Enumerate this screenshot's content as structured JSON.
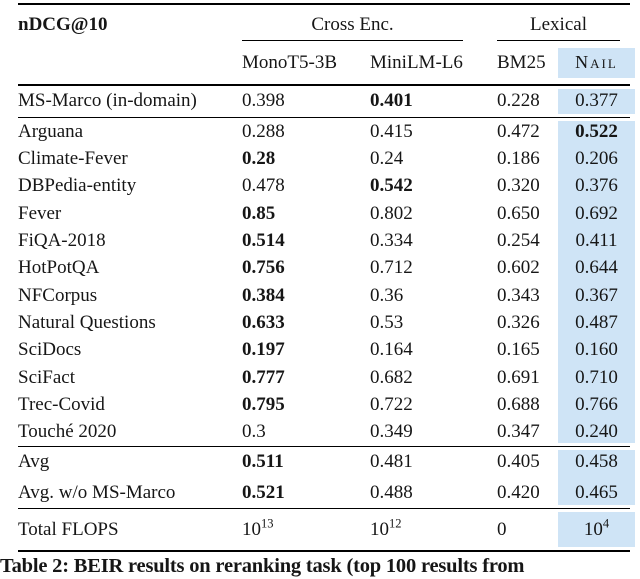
{
  "colors": {
    "highlight": "#cfe4f6",
    "text": "#161616",
    "rule": "#000000"
  },
  "table": {
    "metric_label": "nDCG@10",
    "group_headers": [
      {
        "label": "Cross Enc."
      },
      {
        "label": "Lexical"
      }
    ],
    "columns": [
      {
        "label": "MonoT5-3B"
      },
      {
        "label": "MiniLM-L6"
      },
      {
        "label": "BM25"
      },
      {
        "label": "Nail",
        "smallcaps": true,
        "highlighted": true
      }
    ],
    "sections": [
      {
        "name": "in-domain",
        "rows": [
          {
            "label": "MS-Marco (in-domain)",
            "values": [
              "0.398",
              "0.401",
              "0.228",
              "0.377"
            ],
            "bold_col": 1
          }
        ]
      },
      {
        "name": "beir-datasets",
        "rows": [
          {
            "label": "Arguana",
            "values": [
              "0.288",
              "0.415",
              "0.472",
              "0.522"
            ],
            "bold_col": 3
          },
          {
            "label": "Climate-Fever",
            "values": [
              "0.28",
              "0.24",
              "0.186",
              "0.206"
            ],
            "bold_col": 0
          },
          {
            "label": "DBPedia-entity",
            "values": [
              "0.478",
              "0.542",
              "0.320",
              "0.376"
            ],
            "bold_col": 1
          },
          {
            "label": "Fever",
            "values": [
              "0.85",
              "0.802",
              "0.650",
              "0.692"
            ],
            "bold_col": 0
          },
          {
            "label": "FiQA-2018",
            "values": [
              "0.514",
              "0.334",
              "0.254",
              "0.411"
            ],
            "bold_col": 0
          },
          {
            "label": "HotPotQA",
            "values": [
              "0.756",
              "0.712",
              "0.602",
              "0.644"
            ],
            "bold_col": 0
          },
          {
            "label": "NFCorpus",
            "values": [
              "0.384",
              "0.36",
              "0.343",
              "0.367"
            ],
            "bold_col": 0
          },
          {
            "label": "Natural Questions",
            "values": [
              "0.633",
              "0.53",
              "0.326",
              "0.487"
            ],
            "bold_col": 0
          },
          {
            "label": "SciDocs",
            "values": [
              "0.197",
              "0.164",
              "0.165",
              "0.160"
            ],
            "bold_col": 0
          },
          {
            "label": "SciFact",
            "values": [
              "0.777",
              "0.682",
              "0.691",
              "0.710"
            ],
            "bold_col": 0
          },
          {
            "label": "Trec-Covid",
            "values": [
              "0.795",
              "0.722",
              "0.688",
              "0.766"
            ],
            "bold_col": 0
          },
          {
            "label": "Touché 2020",
            "values": [
              "0.3",
              "0.349",
              "0.347",
              "0.240"
            ],
            "bold_col": -1
          }
        ]
      },
      {
        "name": "averages",
        "rows": [
          {
            "label": "Avg",
            "values": [
              "0.511",
              "0.481",
              "0.405",
              "0.458"
            ],
            "bold_col": 0
          },
          {
            "label": "Avg. w/o MS-Marco",
            "values": [
              "0.521",
              "0.488",
              "0.420",
              "0.465"
            ],
            "bold_col": 0
          }
        ]
      },
      {
        "name": "flops",
        "rows": [
          {
            "label": "Total FLOPS",
            "values": [
              "10^13",
              "10^12",
              "0",
              "10^4"
            ],
            "bold_col": -1
          }
        ]
      }
    ]
  },
  "caption": "Table 2: BEIR results on reranking task (top 100 results from"
}
